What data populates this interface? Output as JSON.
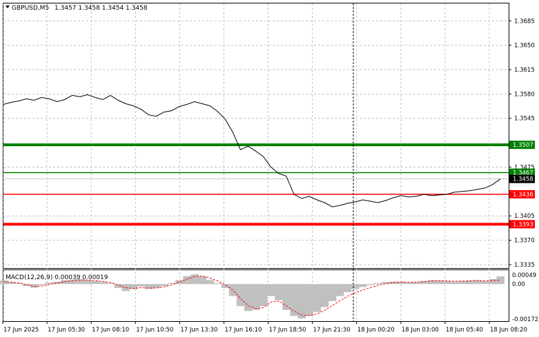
{
  "header": {
    "symbol": "GBPUSD,M5",
    "ohlc": "1.3457 1.3458 1.3454 1.3458"
  },
  "macd": {
    "label": "MACD(12,26,9) 0.00039 0.00019",
    "axis_top": "0.00049",
    "axis_zero": "0.00",
    "axis_bottom": "-0.00172"
  },
  "price_axis": [
    "1.3685",
    "1.3650",
    "1.3615",
    "1.3580",
    "1.3545",
    "1.3475",
    "1.3405",
    "1.3370",
    "1.3335"
  ],
  "time_axis": [
    "17 Jun 2025",
    "17 Jun 05:30",
    "17 Jun 08:10",
    "17 Jun 10:50",
    "17 Jun 13:30",
    "17 Jun 16:10",
    "17 Jun 18:50",
    "17 Jun 21:30",
    "18 Jun 00:20",
    "18 Jun 03:00",
    "18 Jun 05:40",
    "18 Jun 08:20"
  ],
  "levels": [
    {
      "name": "resistance-strong",
      "value": 1.3507,
      "label": "1.3507",
      "color": "#008000",
      "thick": true
    },
    {
      "name": "resistance",
      "value": 1.3467,
      "label": "1.3467",
      "color": "#008000",
      "thick": false
    },
    {
      "name": "support",
      "value": 1.3436,
      "label": "1.3436",
      "color": "#ff0000",
      "thick": false
    },
    {
      "name": "support-strong",
      "value": 1.3393,
      "label": "1.3393",
      "color": "#ff0000",
      "thick": true
    }
  ],
  "current_price": {
    "label": "1.3458",
    "value": 1.3458
  },
  "colors": {
    "price_line": "#000000",
    "grid": "#c0c0c0",
    "histogram": "#c0c0c0",
    "signal": "#ff0000"
  },
  "chart_data": {
    "type": "line",
    "title": "GBPUSD,M5",
    "x": [
      "17 Jun 2025",
      "17 Jun 05:30",
      "17 Jun 08:10",
      "17 Jun 10:50",
      "17 Jun 13:30",
      "17 Jun 16:10",
      "17 Jun 18:50",
      "17 Jun 21:30",
      "18 Jun 00:20",
      "18 Jun 03:00",
      "18 Jun 05:40",
      "18 Jun 08:20"
    ],
    "ylim": [
      1.333,
      1.371
    ],
    "price_series": [
      1.3565,
      1.3568,
      1.357,
      1.3573,
      1.3571,
      1.3575,
      1.3573,
      1.3569,
      1.3572,
      1.3578,
      1.3576,
      1.3579,
      1.3575,
      1.3572,
      1.3578,
      1.3571,
      1.3566,
      1.3563,
      1.3558,
      1.355,
      1.3548,
      1.3554,
      1.3556,
      1.3562,
      1.3565,
      1.3569,
      1.3566,
      1.3563,
      1.3555,
      1.3544,
      1.3525,
      1.35,
      1.3505,
      1.3498,
      1.349,
      1.3475,
      1.3466,
      1.3462,
      1.3436,
      1.343,
      1.3433,
      1.3428,
      1.3424,
      1.3418,
      1.342,
      1.3423,
      1.3425,
      1.3428,
      1.3426,
      1.3424,
      1.3427,
      1.3431,
      1.3434,
      1.3432,
      1.3433,
      1.3436,
      1.3434,
      1.3435,
      1.3436,
      1.3439,
      1.344,
      1.3441,
      1.3443,
      1.3445,
      1.345,
      1.3458
    ],
    "macd_histogram": [
      0.00018,
      0.0001,
      5e-05,
      -0.0001,
      -0.00018,
      -5e-05,
      8e-05,
      0.00012,
      0.0002,
      0.00022,
      0.00024,
      0.0002,
      0.00015,
      0.0001,
      5e-05,
      -0.0002,
      -0.00035,
      -0.00025,
      -0.00012,
      -0.00025,
      -0.0002,
      -0.0001,
      5e-05,
      0.0002,
      0.0004,
      0.00049,
      0.0004,
      0.0002,
      5e-05,
      -0.0002,
      -0.0006,
      -0.0011,
      -0.00135,
      -0.0013,
      -0.0011,
      -0.0006,
      -0.0008,
      -0.0013,
      -0.0016,
      -0.00172,
      -0.0016,
      -0.0014,
      -0.00115,
      -0.00085,
      -0.0006,
      -0.0004,
      -0.00025,
      -0.00015,
      -5e-05,
      5e-05,
      0.0001,
      0.00012,
      0.00012,
      8e-05,
      0.0001,
      0.00015,
      0.0002,
      0.00018,
      0.00015,
      0.00012,
      0.00015,
      0.00018,
      0.0002,
      0.00015,
      0.00025,
      0.00039
    ],
    "macd_signal": [
      0.00012,
      0.0001,
      6e-05,
      -2e-05,
      -0.00012,
      -0.0001,
      -2e-05,
      5e-05,
      0.00012,
      0.00016,
      0.0002,
      0.0002,
      0.00017,
      0.00013,
      8e-05,
      -4e-05,
      -0.00018,
      -0.00022,
      -0.00018,
      -0.0002,
      -0.0002,
      -0.00014,
      -4e-05,
      0.0001,
      0.00025,
      0.00037,
      0.0004,
      0.0003,
      0.00016,
      -2e-05,
      -0.0003,
      -0.00072,
      -0.00108,
      -0.00122,
      -0.00118,
      -0.0009,
      -0.00085,
      -0.00108,
      -0.00135,
      -0.00155,
      -0.00158,
      -0.0015,
      -0.00132,
      -0.00108,
      -0.00084,
      -0.00062,
      -0.00044,
      -0.0003,
      -0.00018,
      -6e-05,
      2e-05,
      8e-05,
      0.0001,
      9e-05,
      0.0001,
      0.00012,
      0.00016,
      0.00017,
      0.00016,
      0.00014,
      0.00015,
      0.00016,
      0.00018,
      0.00016,
      0.00018,
      0.00019
    ]
  }
}
